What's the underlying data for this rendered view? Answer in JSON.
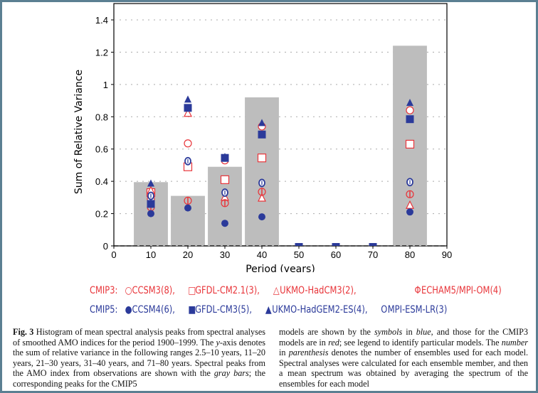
{
  "chart_data": {
    "type": "bar",
    "title": "",
    "xlabel": "Period (years)",
    "ylabel": "Sum of Relative Variance",
    "xlim": [
      0,
      90
    ],
    "ylim": [
      0,
      1.4
    ],
    "xticks": [
      "0",
      "10",
      "20",
      "30",
      "40",
      "50",
      "60",
      "70",
      "80",
      "90"
    ],
    "yticks": [
      "0",
      "0.2",
      "0.4",
      "0.6",
      "0.8",
      "1",
      "1.2",
      "1.4"
    ],
    "grid": "horizontal dotted",
    "observations_bars": {
      "name": "Observations (gray bars)",
      "x": [
        10,
        20,
        30,
        40,
        80
      ],
      "values": [
        0.395,
        0.31,
        0.49,
        0.92,
        1.24
      ],
      "color": "#bdbdbd"
    },
    "x": [
      10,
      20,
      30,
      40,
      50,
      60,
      70,
      80
    ],
    "series": [
      {
        "name": "CCSM3(8)",
        "group": "CMIP3",
        "marker": "open-circle",
        "color": "#e8353a",
        "values": [
          0.29,
          0.635,
          0.53,
          0.74,
          0,
          0,
          0,
          0.84
        ]
      },
      {
        "name": "GFDL-CM2.1(3)",
        "group": "CMIP3",
        "marker": "open-square",
        "color": "#e8353a",
        "values": [
          0.33,
          0.49,
          0.41,
          0.545,
          0,
          0,
          0,
          0.63
        ]
      },
      {
        "name": "UKMO-HadCM3(2)",
        "group": "CMIP3",
        "marker": "open-triangle",
        "color": "#e8353a",
        "values": [
          0.34,
          0.82,
          0.3,
          0.295,
          0,
          0,
          0,
          0.25
        ]
      },
      {
        "name": "ECHAM5/MPI-OM(4)",
        "group": "CMIP3",
        "marker": "phi",
        "color": "#e8353a",
        "values": [
          0.24,
          0.28,
          0.265,
          0.335,
          0,
          0,
          0,
          0.32
        ]
      },
      {
        "name": "CCSM4(6)",
        "group": "CMIP5",
        "marker": "filled-circle",
        "color": "#2b3a9a",
        "values": [
          0.2,
          0.235,
          0.14,
          0.18,
          0,
          0,
          0,
          0.21
        ]
      },
      {
        "name": "MPI-ESM-LR(3)",
        "group": "CMIP5",
        "marker": "o-bar",
        "color": "#2b3a9a",
        "values": [
          0.31,
          0.525,
          0.33,
          0.39,
          0,
          0,
          0,
          0.395
        ]
      },
      {
        "name": "UKMO-HadGEM2-ES(4)",
        "group": "CMIP5",
        "marker": "filled-triangle",
        "color": "#2b3a9a",
        "values": [
          0.385,
          0.905,
          0.55,
          0.76,
          0,
          0,
          0,
          0.885
        ]
      },
      {
        "name": "GFDL-CM3(5)",
        "group": "CMIP5",
        "marker": "filled-square",
        "color": "#2b3a9a",
        "values": [
          0.26,
          0.855,
          0.545,
          0.69,
          0,
          0,
          0,
          0.785
        ]
      }
    ]
  },
  "legend": {
    "cmip3_label": "CMIP3:",
    "cmip5_label": "CMIP5:",
    "cmip3": [
      "CCSM3(8),",
      "GFDL-CM2.1(3),",
      "UKMO-HadCM3(2),",
      "ECHAM5/MPI-OM(4)"
    ],
    "cmip5": [
      "CCSM4(6),",
      "GFDL-CM3(5),",
      "UKMO-HadGEM2-ES(4),",
      "MPI-ESM-LR(3)"
    ],
    "symbols3": [
      "○",
      "□",
      "△",
      "Φ"
    ],
    "symbols5": [
      "●",
      "■",
      "▲",
      "O"
    ]
  },
  "caption": {
    "fig_label": "Fig. 3",
    "left": [
      " Histogram of mean spectral analysis peaks from spectral analyses of smoothed AMO indices for the period 1900–1999. The ",
      "y",
      "-axis denotes the sum of relative variance in the following ranges 2.5–10 years, 11–20 years, 21–30 years, 31–40 years, and 71–80 years. Spectral peaks from the AMO index from observations are shown with the ",
      "gray bars",
      "; the corresponding peaks for the CMIP5"
    ],
    "right": [
      "models are shown by the ",
      "symbols",
      " in ",
      "blue",
      ", and those for the CMIP3 models are in ",
      "red",
      "; see legend to identify particular models. The ",
      "number",
      " in ",
      "parenthesis",
      " denotes the number of ensembles used for each model. Spectral analyses were calculated for each ensemble member, and then a mean spectrum was obtained by averaging the spectrum of the ensembles for each model"
    ]
  }
}
